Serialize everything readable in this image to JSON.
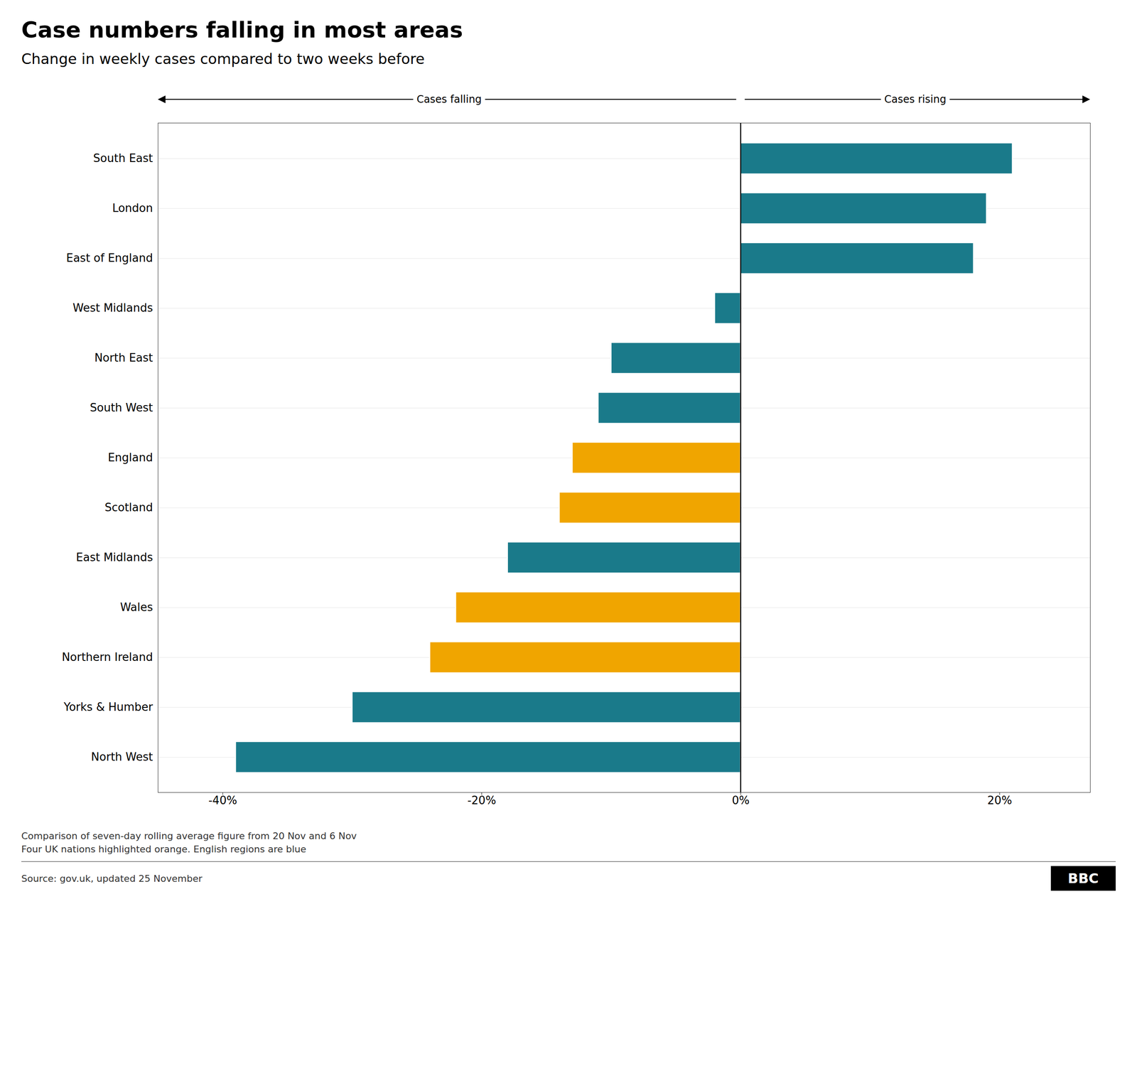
{
  "chart_data": {
    "type": "bar",
    "orientation": "horizontal",
    "title": "Case numbers falling in most areas",
    "subtitle": "Change in weekly cases compared to two weeks before",
    "categories": [
      "South East",
      "London",
      "East of England",
      "West Midlands",
      "North East",
      "South West",
      "England",
      "Scotland",
      "East Midlands",
      "Wales",
      "Northern Ireland",
      "Yorks & Humber",
      "North West"
    ],
    "values": [
      21,
      19,
      18,
      -2,
      -10,
      -11,
      -13,
      -14,
      -18,
      -22,
      -24,
      -30,
      -39
    ],
    "colors": [
      "#1a7a8a",
      "#1a7a8a",
      "#1a7a8a",
      "#1a7a8a",
      "#1a7a8a",
      "#1a7a8a",
      "#f0a500",
      "#f0a500",
      "#1a7a8a",
      "#f0a500",
      "#f0a500",
      "#1a7a8a",
      "#1a7a8a"
    ],
    "xlim": [
      -45,
      27
    ],
    "xticks": [
      {
        "value": -40,
        "label": "-40%"
      },
      {
        "value": -20,
        "label": "-20%"
      },
      {
        "value": 0,
        "label": "0%"
      },
      {
        "value": 20,
        "label": "20%"
      }
    ],
    "grid": "y",
    "annotations": [
      "Cases falling",
      "Cases rising"
    ],
    "footer": [
      "Comparison of seven-day rolling average figure from 20 Nov and 6 Nov",
      "Four UK nations highlighted orange. English regions are blue"
    ],
    "source": "Source: gov.uk, updated 25 November",
    "logo": "BBC"
  }
}
